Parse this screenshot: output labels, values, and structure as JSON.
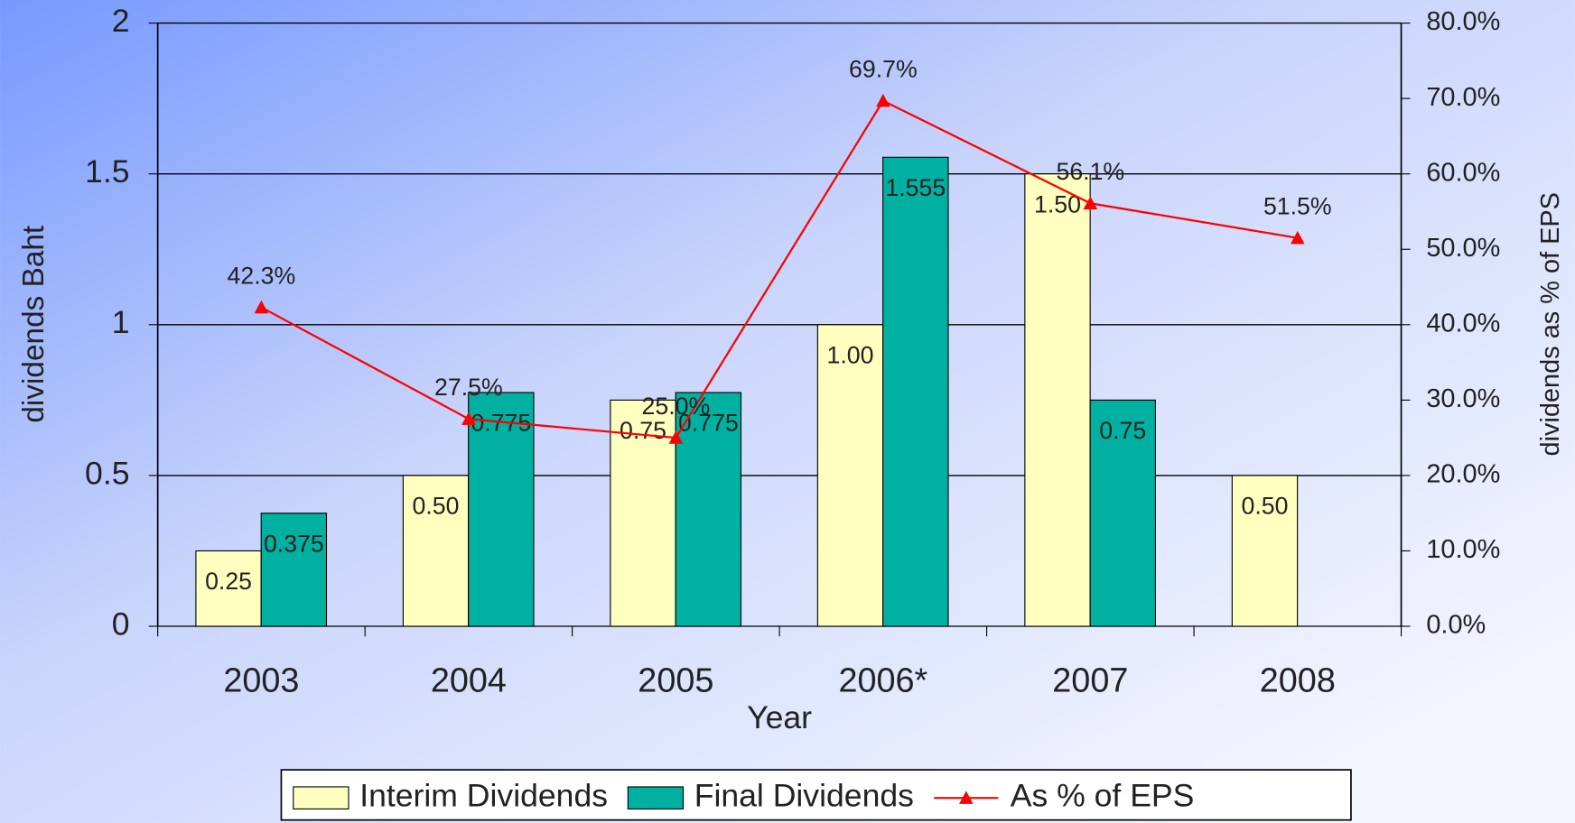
{
  "chart_data": {
    "type": "bar",
    "categories": [
      "2003",
      "2004",
      "2005",
      "2006*",
      "2007",
      "2008"
    ],
    "xlabel": "Year",
    "ylabel": "dividends Baht",
    "y2label": "dividends as % of EPS",
    "series": [
      {
        "name": "Interim Dividends",
        "color": "#ffffc0",
        "values": [
          0.25,
          0.5,
          0.75,
          1.0,
          1.5,
          0.5
        ],
        "value_labels": [
          "0.25",
          "0.50",
          "0.75",
          "1.00",
          "1.50",
          "0.50"
        ]
      },
      {
        "name": "Final Dividends",
        "color": "#00b0a0",
        "values": [
          0.375,
          0.775,
          0.775,
          1.555,
          0.75,
          null
        ]
      },
      {
        "name": "As % of EPS",
        "color": "#ff0000",
        "type": "line",
        "axis": "y2",
        "values": [
          42.3,
          27.5,
          25.0,
          69.7,
          56.1,
          51.5
        ],
        "value_labels": [
          "42.3%",
          "27.5%",
          "25.0%",
          "69.7%",
          "56.1%",
          "51.5%"
        ]
      }
    ],
    "ylim": [
      0,
      2
    ],
    "yticks": [
      0,
      0.5,
      1,
      1.5,
      2
    ],
    "y2lim": [
      0,
      80
    ],
    "y2ticks": [
      {
        "value": 0,
        "label": "0.0%"
      },
      {
        "value": 10,
        "label": "10.0%"
      },
      {
        "value": 20,
        "label": "20.0%"
      },
      {
        "value": 30,
        "label": "30.0%"
      },
      {
        "value": 40,
        "label": "40.0%"
      },
      {
        "value": 50,
        "label": "50.0%"
      },
      {
        "value": 60,
        "label": "60.0%"
      },
      {
        "value": 70,
        "label": "70.0%"
      },
      {
        "value": 80,
        "label": "80.0%"
      }
    ],
    "grid": true,
    "legend": "bottom"
  }
}
